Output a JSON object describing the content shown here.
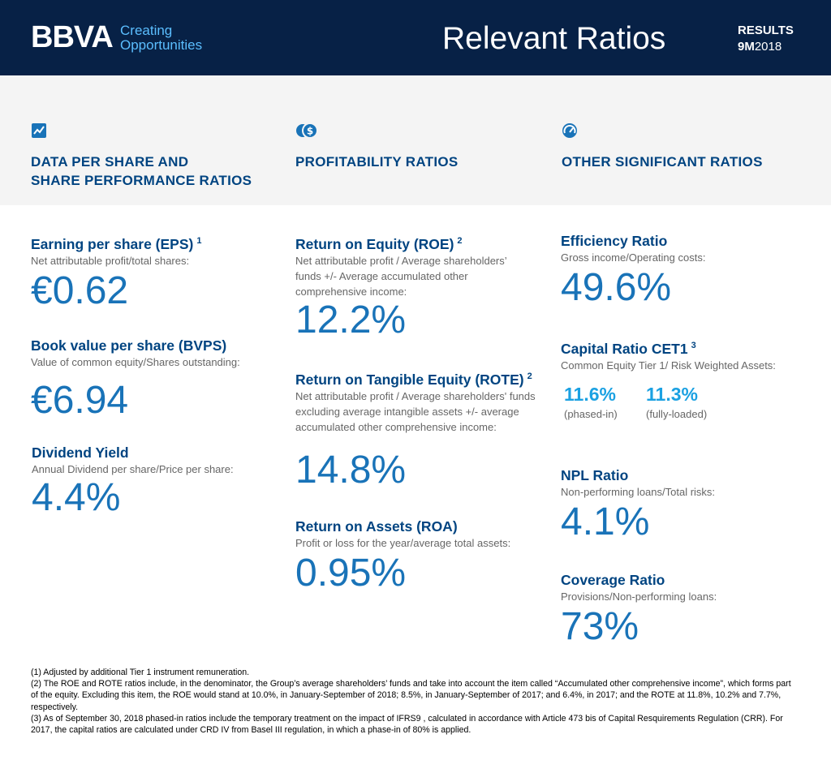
{
  "header": {
    "logo": "BBVA",
    "tagline_line1": "Creating",
    "tagline_line2": "Opportunities",
    "title": "Relevant Ratios",
    "results_label": "RESULTS",
    "period_bold": "9M",
    "period_year": "2018"
  },
  "sections": {
    "share": {
      "icon": "chart-line-icon",
      "title_line1": "DATA PER SHARE AND",
      "title_line2": "SHARE PERFORMANCE RATIOS"
    },
    "profit": {
      "icon": "coins-dollar-icon",
      "title": "PROFITABILITY RATIOS"
    },
    "other": {
      "icon": "gauge-icon",
      "title": "OTHER SIGNIFICANT RATIOS"
    }
  },
  "metrics": {
    "eps": {
      "title": "Earning per share (EPS)",
      "note": "1",
      "desc": "Net attributable profit/total shares:",
      "value": "€0.62"
    },
    "bvps": {
      "title": "Book value per share (BVPS)",
      "desc": "Value of common equity/Shares outstanding:",
      "value": "€6.94"
    },
    "dividend": {
      "title": "Dividend Yield",
      "desc": "Annual Dividend per share/Price per share:",
      "value": "4.4%"
    },
    "roe": {
      "title": "Return on Equity (ROE)",
      "note": "2",
      "desc_line1": "Net attributable profit / Average shareholders’",
      "desc_line2": "funds +/- Average accumulated other",
      "desc_line3": "comprehensive income:",
      "value": "12.2%"
    },
    "rote": {
      "title": "Return on Tangible Equity (ROTE)",
      "note": "2",
      "desc_line1": "Net attributable profit / Average shareholders' funds",
      "desc_line2": "excluding average intangible assets  +/- average",
      "desc_line3": "accumulated other comprehensive income:",
      "value": "14.8%"
    },
    "roa": {
      "title": "Return on Assets (ROA)",
      "desc": "Profit or loss for the year/average total assets:",
      "value": "0.95%"
    },
    "efficiency": {
      "title": "Efficiency Ratio",
      "desc": "Gross income/Operating costs:",
      "value": "49.6%"
    },
    "cet1": {
      "title": "Capital Ratio CET1",
      "note": "3",
      "desc": "Common Equity Tier 1/ Risk Weighted Assets:",
      "phased_value": "11.6%",
      "phased_label": "(phased-in)",
      "full_value": "11.3%",
      "full_label": "(fully-loaded)"
    },
    "npl": {
      "title": "NPL Ratio",
      "desc": "Non-performing loans/Total risks:",
      "value": "4.1%"
    },
    "coverage": {
      "title": "Coverage Ratio",
      "desc": "Provisions/Non-performing loans:",
      "value": "73%"
    }
  },
  "footnotes": {
    "n1": "(1) Adjusted by additional Tier 1 instrument remuneration.",
    "n2": "(2) The ROE and ROTE ratios include, in the denominator, the Group’s average shareholders’ funds and take into account the item called “Accumulated other comprehensive income”, which forms part of the equity. Excluding this item, the ROE would stand at 10.0%, in January-September of 2018; 8.5%, in January-September of 2017; and 6.4%, in 2017; and the ROTE at 11.8%, 10.2% and 7.7%, respectively.",
    "n3": "(3) As of September 30, 2018 phased-in ratios include the temporary treatment on the impact of IFRS9 , calculated in accordance with Article 473 bis of Capital Resquirements Regulation (CRR). For 2017, the capital ratios are calculated under CRD IV from Basel III regulation, in which a phase-in of 80% is applied."
  },
  "colors": {
    "navy": "#072146",
    "title_blue": "#004481",
    "value_blue": "#1973b8",
    "accent_sky": "#1ba1e2",
    "band_grey": "#f4f4f4"
  }
}
